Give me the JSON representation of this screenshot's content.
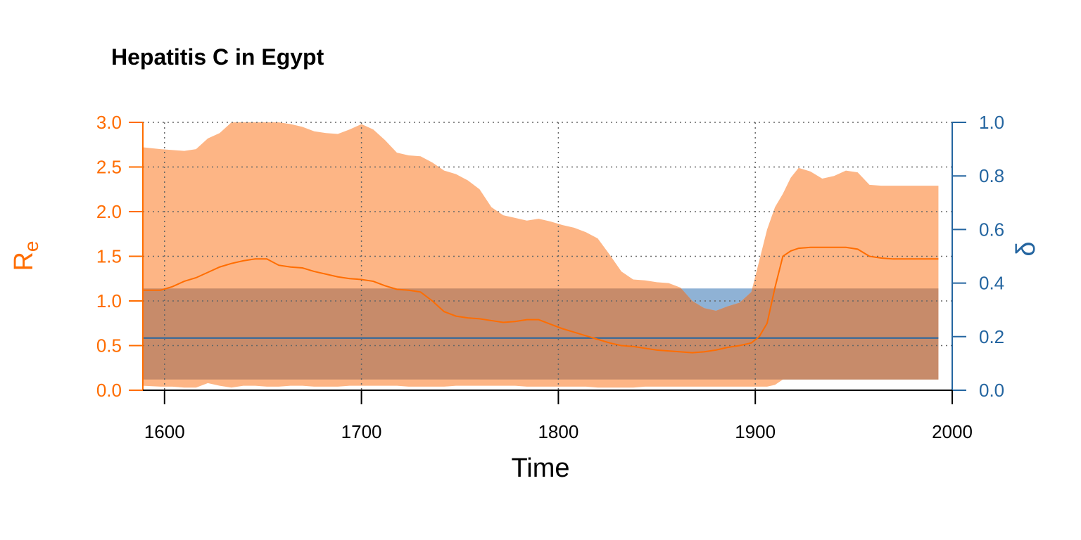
{
  "chart_data": {
    "type": "area",
    "title": "Hepatitis C in Egypt",
    "xlabel": "Time",
    "ylabel_left": "R",
    "ylabel_left_sub": "e",
    "ylabel_right": "δ",
    "xlim": [
      1589,
      2000
    ],
    "ylim_left": [
      0,
      3
    ],
    "ylim_right": [
      0,
      1
    ],
    "x_ticks": [
      1600,
      1700,
      1800,
      1900,
      2000
    ],
    "y_left_ticks": [
      "0.0",
      "0.5",
      "1.0",
      "1.5",
      "2.0",
      "2.5",
      "3.0"
    ],
    "y_right_ticks": [
      "0.0",
      "0.2",
      "0.4",
      "0.6",
      "0.8",
      "1.0"
    ],
    "grid": true,
    "colors": {
      "re": "#ff6d00",
      "re_band": "#fdb585",
      "delta": "#2465a0",
      "delta_band": "#8fb2d5",
      "overlap": "#c78b6a"
    },
    "series": [
      {
        "name": "R_e",
        "axis": "left",
        "x": [
          1589,
          1598,
          1604,
          1610,
          1616,
          1622,
          1628,
          1634,
          1640,
          1646,
          1652,
          1658,
          1664,
          1670,
          1676,
          1682,
          1688,
          1694,
          1700,
          1706,
          1712,
          1718,
          1724,
          1730,
          1736,
          1742,
          1748,
          1754,
          1760,
          1766,
          1772,
          1778,
          1784,
          1790,
          1796,
          1802,
          1808,
          1814,
          1820,
          1826,
          1832,
          1838,
          1844,
          1850,
          1856,
          1862,
          1868,
          1874,
          1880,
          1886,
          1892,
          1898,
          1902,
          1906,
          1910,
          1914,
          1918,
          1922,
          1928,
          1934,
          1940,
          1946,
          1952,
          1958,
          1964,
          1970,
          1976,
          1982,
          1988,
          1993
        ],
        "mean": [
          1.12,
          1.12,
          1.16,
          1.22,
          1.26,
          1.32,
          1.38,
          1.42,
          1.45,
          1.47,
          1.47,
          1.4,
          1.38,
          1.37,
          1.33,
          1.3,
          1.27,
          1.25,
          1.24,
          1.22,
          1.17,
          1.13,
          1.12,
          1.1,
          1.0,
          0.88,
          0.83,
          0.81,
          0.8,
          0.78,
          0.76,
          0.77,
          0.79,
          0.79,
          0.74,
          0.69,
          0.65,
          0.61,
          0.57,
          0.53,
          0.5,
          0.49,
          0.47,
          0.45,
          0.44,
          0.43,
          0.42,
          0.43,
          0.45,
          0.48,
          0.5,
          0.53,
          0.6,
          0.75,
          1.15,
          1.5,
          1.56,
          1.59,
          1.6,
          1.6,
          1.6,
          1.6,
          1.58,
          1.5,
          1.48,
          1.47,
          1.47,
          1.47,
          1.47,
          1.47
        ],
        "lower": [
          0.05,
          0.04,
          0.04,
          0.03,
          0.03,
          0.08,
          0.05,
          0.03,
          0.05,
          0.05,
          0.04,
          0.04,
          0.05,
          0.05,
          0.04,
          0.04,
          0.04,
          0.05,
          0.05,
          0.05,
          0.05,
          0.05,
          0.04,
          0.04,
          0.04,
          0.04,
          0.05,
          0.05,
          0.05,
          0.05,
          0.05,
          0.05,
          0.04,
          0.04,
          0.04,
          0.04,
          0.04,
          0.04,
          0.03,
          0.03,
          0.03,
          0.03,
          0.04,
          0.04,
          0.04,
          0.04,
          0.04,
          0.04,
          0.04,
          0.04,
          0.04,
          0.04,
          0.04,
          0.04,
          0.06,
          0.12,
          0.12,
          0.12,
          0.12,
          0.12,
          0.12,
          0.12,
          0.12,
          0.12,
          0.12,
          0.12,
          0.12,
          0.12,
          0.12,
          0.12
        ],
        "upper": [
          2.72,
          2.7,
          2.69,
          2.68,
          2.7,
          2.82,
          2.88,
          3.0,
          3.0,
          3.0,
          3.0,
          3.0,
          2.98,
          2.95,
          2.9,
          2.88,
          2.87,
          2.92,
          2.98,
          2.92,
          2.8,
          2.66,
          2.63,
          2.62,
          2.55,
          2.46,
          2.42,
          2.35,
          2.25,
          2.05,
          1.96,
          1.93,
          1.9,
          1.92,
          1.89,
          1.85,
          1.82,
          1.77,
          1.7,
          1.52,
          1.33,
          1.24,
          1.23,
          1.21,
          1.2,
          1.15,
          1.0,
          0.92,
          0.89,
          0.94,
          0.98,
          1.1,
          1.45,
          1.8,
          2.05,
          2.2,
          2.38,
          2.49,
          2.45,
          2.37,
          2.4,
          2.46,
          2.44,
          2.3,
          2.29,
          2.29,
          2.29,
          2.29,
          2.29,
          2.29
        ]
      },
      {
        "name": "δ",
        "axis": "right",
        "x": [
          1589,
          1993
        ],
        "mean": [
          0.195,
          0.195
        ],
        "lower": [
          0.04,
          0.04
        ],
        "upper": [
          0.38,
          0.38
        ]
      }
    ]
  }
}
